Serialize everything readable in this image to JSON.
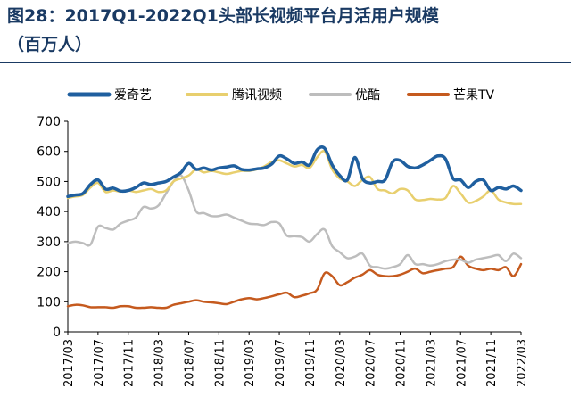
{
  "title_line1": "图28：2017Q1-2022Q1头部长视频平台月活用户规模",
  "title_line2": "（百万人）",
  "chart_data": {
    "type": "line",
    "title": "图28：2017Q1-2022Q1头部长视频平台月活用户规模（百万人）",
    "xlabel": "",
    "ylabel": "",
    "ylim": [
      0,
      700
    ],
    "yticks": [
      0,
      100,
      200,
      300,
      400,
      500,
      600,
      700
    ],
    "x": [
      "2017/03",
      "2017/04",
      "2017/05",
      "2017/06",
      "2017/07",
      "2017/08",
      "2017/09",
      "2017/10",
      "2017/11",
      "2017/12",
      "2018/01",
      "2018/02",
      "2018/03",
      "2018/04",
      "2018/05",
      "2018/06",
      "2018/07",
      "2018/08",
      "2018/09",
      "2018/10",
      "2018/11",
      "2018/12",
      "2019/01",
      "2019/02",
      "2019/03",
      "2019/04",
      "2019/05",
      "2019/06",
      "2019/07",
      "2019/08",
      "2019/09",
      "2019/10",
      "2019/11",
      "2019/12",
      "2020/01",
      "2020/02",
      "2020/03",
      "2020/04",
      "2020/05",
      "2020/06",
      "2020/07",
      "2020/08",
      "2020/09",
      "2020/10",
      "2020/11",
      "2020/12",
      "2021/01",
      "2021/02",
      "2021/03",
      "2021/04",
      "2021/05",
      "2021/06",
      "2021/07",
      "2021/08",
      "2021/09",
      "2021/10",
      "2021/11",
      "2021/12",
      "2022/01",
      "2022/02",
      "2022/03"
    ],
    "xticks": [
      "2017/03",
      "2017/07",
      "2017/11",
      "2018/03",
      "2018/07",
      "2018/11",
      "2019/03",
      "2019/07",
      "2019/11",
      "2020/03",
      "2020/07",
      "2020/11",
      "2021/03",
      "2021/07",
      "2021/11",
      "2022/03"
    ],
    "legend_position": "top",
    "grid": false,
    "series": [
      {
        "name": "爱奇艺",
        "color": "#1f5f9f",
        "values": [
          450,
          455,
          460,
          490,
          505,
          475,
          478,
          468,
          470,
          480,
          495,
          490,
          495,
          500,
          515,
          530,
          560,
          540,
          545,
          538,
          545,
          548,
          552,
          540,
          538,
          542,
          545,
          558,
          585,
          575,
          560,
          565,
          555,
          605,
          610,
          555,
          520,
          505,
          580,
          510,
          495,
          500,
          505,
          565,
          570,
          550,
          545,
          555,
          570,
          585,
          575,
          510,
          505,
          480,
          500,
          505,
          470,
          480,
          475,
          485,
          470
        ]
      },
      {
        "name": "腾讯视频",
        "color": "#e8cf6e",
        "values": [
          445,
          450,
          455,
          480,
          495,
          465,
          470,
          466,
          470,
          465,
          470,
          475,
          465,
          470,
          500,
          510,
          520,
          540,
          530,
          535,
          530,
          525,
          530,
          535,
          535,
          540,
          550,
          565,
          570,
          560,
          550,
          555,
          545,
          580,
          600,
          540,
          510,
          500,
          485,
          505,
          515,
          475,
          470,
          460,
          475,
          470,
          440,
          438,
          442,
          440,
          445,
          485,
          460,
          430,
          435,
          450,
          470,
          440,
          430,
          425,
          425
        ]
      },
      {
        "name": "优酷",
        "color": "#bdbdbd",
        "values": [
          295,
          300,
          295,
          290,
          350,
          345,
          340,
          360,
          370,
          380,
          415,
          410,
          420,
          460,
          500,
          520,
          470,
          400,
          395,
          385,
          385,
          390,
          380,
          370,
          360,
          358,
          355,
          365,
          360,
          320,
          318,
          315,
          300,
          325,
          340,
          285,
          265,
          245,
          250,
          260,
          220,
          215,
          210,
          215,
          225,
          255,
          225,
          225,
          220,
          225,
          235,
          240,
          240,
          230,
          240,
          245,
          250,
          255,
          235,
          260,
          245
        ]
      },
      {
        "name": "芒果TV",
        "color": "#c55a1e",
        "values": [
          85,
          90,
          88,
          82,
          82,
          82,
          80,
          85,
          85,
          80,
          80,
          82,
          80,
          80,
          90,
          95,
          100,
          105,
          100,
          98,
          95,
          92,
          100,
          108,
          112,
          108,
          112,
          118,
          125,
          130,
          115,
          120,
          128,
          140,
          195,
          185,
          155,
          165,
          180,
          190,
          205,
          190,
          185,
          185,
          190,
          200,
          210,
          195,
          200,
          205,
          210,
          215,
          250,
          220,
          210,
          205,
          210,
          205,
          215,
          185,
          225
        ]
      }
    ]
  }
}
